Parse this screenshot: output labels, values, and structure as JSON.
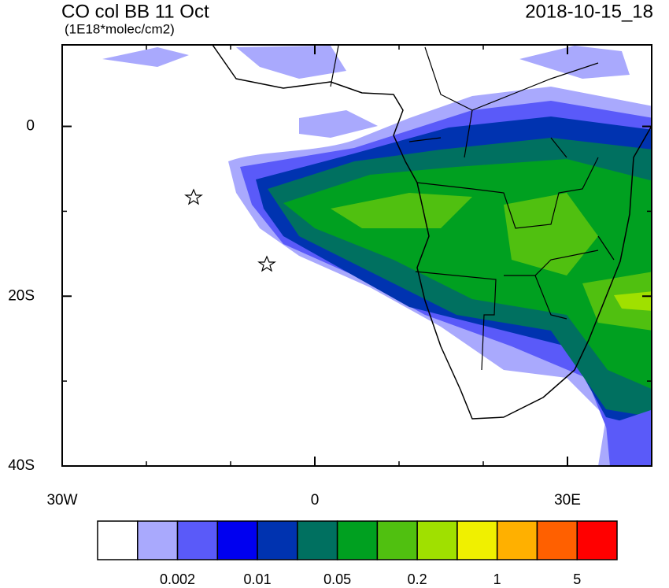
{
  "header": {
    "title": "CO col BB 11 Oct",
    "units": "(1E18*molec/cm2)",
    "timestamp": "2018-10-15_18"
  },
  "map": {
    "lonlim": [
      -30,
      40
    ],
    "latlim": [
      -40,
      9.6
    ],
    "lon_ticks": [
      {
        "value": -30,
        "label": "30W"
      },
      0,
      {
        "value": 30,
        "label": "30E"
      }
    ],
    "lat_ticks": [
      0,
      {
        "value": -20,
        "label": "20S"
      },
      {
        "value": -40,
        "label": "40S"
      }
    ],
    "lon_minor_ticks": [
      -20,
      -10,
      10,
      20,
      40
    ],
    "lat_minor_ticks": [
      -10,
      -30
    ]
  },
  "colorbar": {
    "colors": [
      "#ffffff",
      "#a9a9fd",
      "#5a5af9",
      "#0000f0",
      "#0033b0",
      "#007060",
      "#00a020",
      "#50c010",
      "#a0e000",
      "#f0f000",
      "#ffb000",
      "#ff6000",
      "#ff0000"
    ],
    "labels": [
      "0.002",
      "0.01",
      "0.05",
      "0.2",
      "1",
      "5"
    ]
  }
}
